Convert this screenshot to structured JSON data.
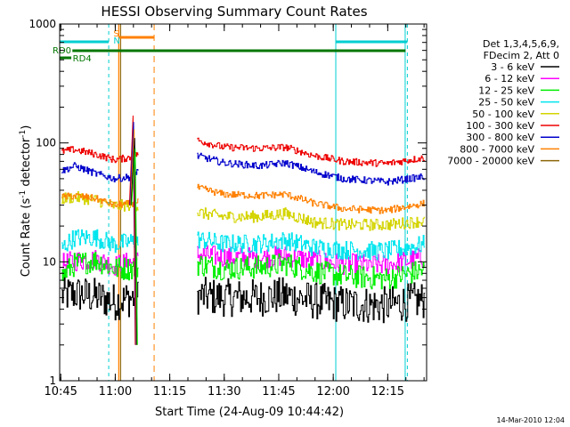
{
  "chart_data": {
    "type": "line",
    "title": "HESSI Observing Summary Count Rates",
    "xlabel": "Start Time (24-Aug-09 10:44:42)",
    "ylabel_main": "Count Rate (s",
    "ylabel_sup1": "-1",
    "ylabel_mid": " detector",
    "ylabel_sup2": "-1",
    "ylabel_end": ")",
    "footer": "14-Mar-2010 12:04",
    "y_scale": "log",
    "ylim": [
      1,
      1000
    ],
    "xlim_minutes": [
      0,
      101
    ],
    "x_ticks": [
      {
        "t": 0.3,
        "label": "10:45"
      },
      {
        "t": 15.3,
        "label": "11:00"
      },
      {
        "t": 30.3,
        "label": "11:15"
      },
      {
        "t": 45.3,
        "label": "11:30"
      },
      {
        "t": 60.3,
        "label": "11:45"
      },
      {
        "t": 75.3,
        "label": "12:00"
      },
      {
        "t": 90.3,
        "label": "12:15"
      }
    ],
    "y_ticks": [
      {
        "v": 1,
        "label": "1"
      },
      {
        "v": 10,
        "label": "10"
      },
      {
        "v": 100,
        "label": "100"
      },
      {
        "v": 1000,
        "label": "1000"
      }
    ],
    "legend": {
      "header": [
        "Det 1,3,4,5,6,9,",
        "FDecim 2, Att 0"
      ],
      "entries": [
        {
          "label": "3 - 6 keV",
          "color": "#000000"
        },
        {
          "label": "6 - 12 keV",
          "color": "#ff00ff"
        },
        {
          "label": "12 - 25 keV",
          "color": "#00ee00"
        },
        {
          "label": "25 - 50 keV",
          "color": "#00e5ee"
        },
        {
          "label": "50 - 100 keV",
          "color": "#d4d400"
        },
        {
          "label": "100 - 300 keV",
          "color": "#ee0000"
        },
        {
          "label": "300 - 800 keV",
          "color": "#0000cc"
        },
        {
          "label": "800 - 7000 keV",
          "color": "#ff8000"
        },
        {
          "label": "7000 - 20000 keV",
          "color": "#8b6508"
        }
      ]
    },
    "flags": [
      {
        "label": "S",
        "color": "#ff8000"
      },
      {
        "label": "N",
        "color": "#00ced1"
      },
      {
        "label": "RD0",
        "color": "#007700"
      },
      {
        "label": "RD4",
        "color": "#007700"
      }
    ],
    "segments": [
      {
        "start": 0.5,
        "end": 21.5
      },
      {
        "start": 37.8,
        "end": 100.3
      }
    ],
    "series": [
      {
        "name": "3 - 6 keV",
        "color": "#000000",
        "noise": 0.16,
        "levels": [
          [
            0.5,
            5.2
          ],
          [
            4,
            5.4
          ],
          [
            10,
            5.1
          ],
          [
            15,
            4.6
          ],
          [
            20,
            5.0
          ],
          [
            21.5,
            5.0
          ],
          [
            37.8,
            5.2
          ],
          [
            45,
            5.0
          ],
          [
            55,
            5.0
          ],
          [
            62,
            5.2
          ],
          [
            70,
            4.7
          ],
          [
            78,
            4.4
          ],
          [
            90,
            4.3
          ],
          [
            100.3,
            4.8
          ]
        ]
      },
      {
        "name": "6 - 12 keV",
        "color": "#ff00ff",
        "noise": 0.09,
        "levels": [
          [
            0.5,
            9.5
          ],
          [
            4,
            10.2
          ],
          [
            10,
            10.5
          ],
          [
            15,
            9.3
          ],
          [
            20,
            10.0
          ],
          [
            21.5,
            10.2
          ],
          [
            37.8,
            11.5
          ],
          [
            45,
            11.0
          ],
          [
            55,
            10.8
          ],
          [
            62,
            11.2
          ],
          [
            70,
            10.2
          ],
          [
            78,
            9.6
          ],
          [
            90,
            9.4
          ],
          [
            100.3,
            10.8
          ]
        ]
      },
      {
        "name": "12 - 25 keV",
        "color": "#00ee00",
        "noise": 0.1,
        "levels": [
          [
            0.5,
            7.5
          ],
          [
            4,
            9.5
          ],
          [
            10,
            10.3
          ],
          [
            15,
            8.8
          ],
          [
            20,
            8.8
          ],
          [
            21.5,
            9.0
          ],
          [
            37.8,
            9.6
          ],
          [
            45,
            8.8
          ],
          [
            55,
            9.0
          ],
          [
            62,
            9.6
          ],
          [
            70,
            8.3
          ],
          [
            78,
            7.6
          ],
          [
            90,
            7.2
          ],
          [
            100.3,
            8.5
          ]
        ]
      },
      {
        "name": "25 - 50 keV",
        "color": "#00e5ee",
        "noise": 0.08,
        "levels": [
          [
            0.5,
            13
          ],
          [
            4,
            16
          ],
          [
            10,
            16
          ],
          [
            15,
            14
          ],
          [
            20,
            14.8
          ],
          [
            21.5,
            15
          ],
          [
            37.8,
            15.5
          ],
          [
            45,
            14.2
          ],
          [
            55,
            14.2
          ],
          [
            62,
            15.2
          ],
          [
            70,
            13.2
          ],
          [
            78,
            12.6
          ],
          [
            90,
            12.3
          ],
          [
            100.3,
            14
          ]
        ]
      },
      {
        "name": "50 - 100 keV",
        "color": "#d4d400",
        "noise": 0.05,
        "levels": [
          [
            0.5,
            34
          ],
          [
            4,
            35
          ],
          [
            10,
            33
          ],
          [
            15,
            29.5
          ],
          [
            20,
            30
          ],
          [
            21.5,
            30
          ],
          [
            37.8,
            26
          ],
          [
            45,
            24
          ],
          [
            55,
            24
          ],
          [
            62,
            25.5
          ],
          [
            70,
            21.5
          ],
          [
            78,
            20.5
          ],
          [
            90,
            20.5
          ],
          [
            100.3,
            22
          ]
        ]
      },
      {
        "name": "100 - 300 keV",
        "color": "#ee0000",
        "noise": 0.03,
        "levels": [
          [
            0.5,
            85
          ],
          [
            4,
            88
          ],
          [
            10,
            80
          ],
          [
            15,
            72
          ],
          [
            20,
            76
          ],
          [
            21.5,
            82
          ],
          [
            37.8,
            105
          ],
          [
            45,
            92
          ],
          [
            55,
            90
          ],
          [
            62,
            92
          ],
          [
            70,
            78
          ],
          [
            78,
            70
          ],
          [
            90,
            67
          ],
          [
            100.3,
            75
          ]
        ]
      },
      {
        "name": "300 - 800 keV",
        "color": "#0000cc",
        "noise": 0.03,
        "levels": [
          [
            0.5,
            58
          ],
          [
            4,
            64
          ],
          [
            10,
            55
          ],
          [
            15,
            50
          ],
          [
            20,
            52
          ],
          [
            21.5,
            60
          ],
          [
            37.8,
            78
          ],
          [
            45,
            68
          ],
          [
            55,
            64
          ],
          [
            62,
            68
          ],
          [
            70,
            57
          ],
          [
            78,
            50
          ],
          [
            90,
            47
          ],
          [
            100.3,
            52
          ]
        ]
      },
      {
        "name": "800 - 7000 keV",
        "color": "#ff8000",
        "noise": 0.03,
        "levels": [
          [
            0.5,
            35
          ],
          [
            4,
            36
          ],
          [
            10,
            34
          ],
          [
            15,
            30
          ],
          [
            20,
            31
          ],
          [
            21.5,
            33
          ],
          [
            37.8,
            42
          ],
          [
            45,
            37
          ],
          [
            55,
            36
          ],
          [
            62,
            37
          ],
          [
            70,
            31
          ],
          [
            78,
            28
          ],
          [
            90,
            27
          ],
          [
            100.3,
            31
          ]
        ]
      }
    ]
  }
}
